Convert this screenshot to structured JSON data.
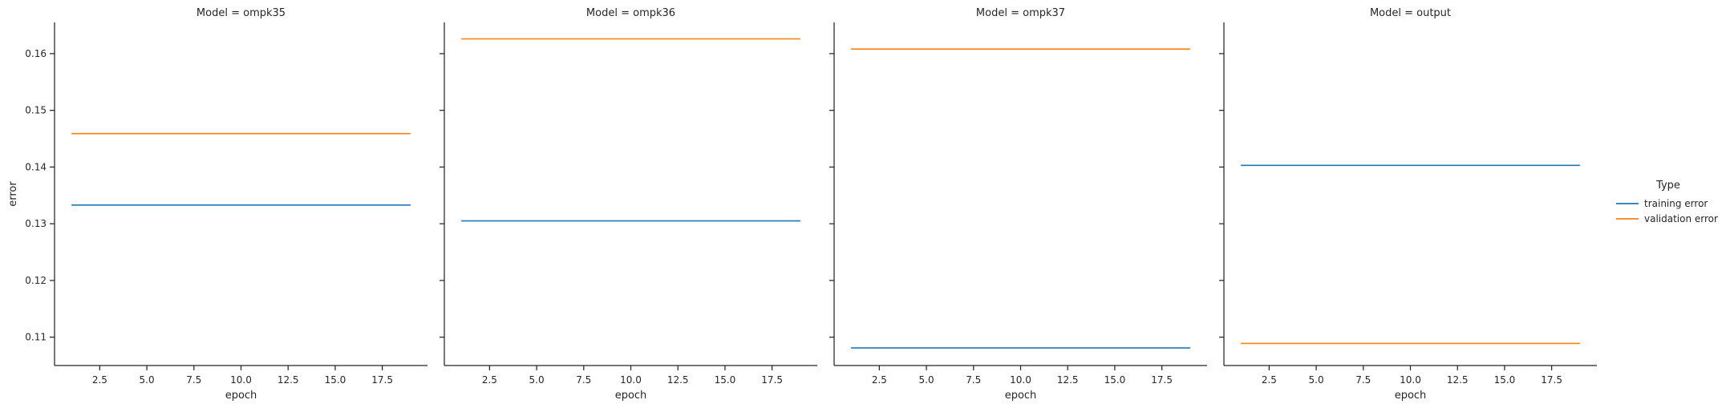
{
  "chart_data": {
    "type": "line",
    "ylabel": "error",
    "ylim": [
      0.105,
      0.1655
    ],
    "xlim": [
      0.1,
      19.9
    ],
    "yticks": [
      0.11,
      0.12,
      0.13,
      0.14,
      0.15,
      0.16
    ],
    "ytick_labels": [
      "0.11",
      "0.12",
      "0.13",
      "0.14",
      "0.15",
      "0.16"
    ],
    "xticks": [
      2.5,
      5.0,
      7.5,
      10.0,
      12.5,
      15.0,
      17.5
    ],
    "xtick_labels": [
      "2.5",
      "5.0",
      "7.5",
      "10.0",
      "12.5",
      "15.0",
      "17.5"
    ],
    "legend": {
      "title": "Type",
      "placement": "right",
      "entries": [
        {
          "label": "training error",
          "color": "#1f77b4"
        },
        {
          "label": "validation error",
          "color": "#ff7f0e"
        }
      ]
    },
    "facets": [
      {
        "title": "Model = ompk35",
        "xlabel": "epoch",
        "series": [
          {
            "name": "training error",
            "color": "#1f77b4",
            "x": [
              1,
              19
            ],
            "y": [
              0.1333,
              0.1333
            ]
          },
          {
            "name": "validation error",
            "color": "#ff7f0e",
            "x": [
              1,
              19
            ],
            "y": [
              0.1459,
              0.1459
            ]
          }
        ]
      },
      {
        "title": "Model = ompk36",
        "xlabel": "epoch",
        "series": [
          {
            "name": "training error",
            "color": "#1f77b4",
            "x": [
              1,
              19
            ],
            "y": [
              0.1305,
              0.1305
            ]
          },
          {
            "name": "validation error",
            "color": "#ff7f0e",
            "x": [
              1,
              19
            ],
            "y": [
              0.1626,
              0.1626
            ]
          }
        ]
      },
      {
        "title": "Model = ompk37",
        "xlabel": "epoch",
        "series": [
          {
            "name": "training error",
            "color": "#1f77b4",
            "x": [
              1,
              19
            ],
            "y": [
              0.1081,
              0.1081
            ]
          },
          {
            "name": "validation error",
            "color": "#ff7f0e",
            "x": [
              1,
              19
            ],
            "y": [
              0.1608,
              0.1608
            ]
          }
        ]
      },
      {
        "title": "Model = output",
        "xlabel": "epoch",
        "series": [
          {
            "name": "training error",
            "color": "#1f77b4",
            "x": [
              1,
              19
            ],
            "y": [
              0.1403,
              0.1403
            ]
          },
          {
            "name": "validation error",
            "color": "#ff7f0e",
            "x": [
              1,
              19
            ],
            "y": [
              0.1089,
              0.1089
            ]
          }
        ]
      }
    ]
  }
}
